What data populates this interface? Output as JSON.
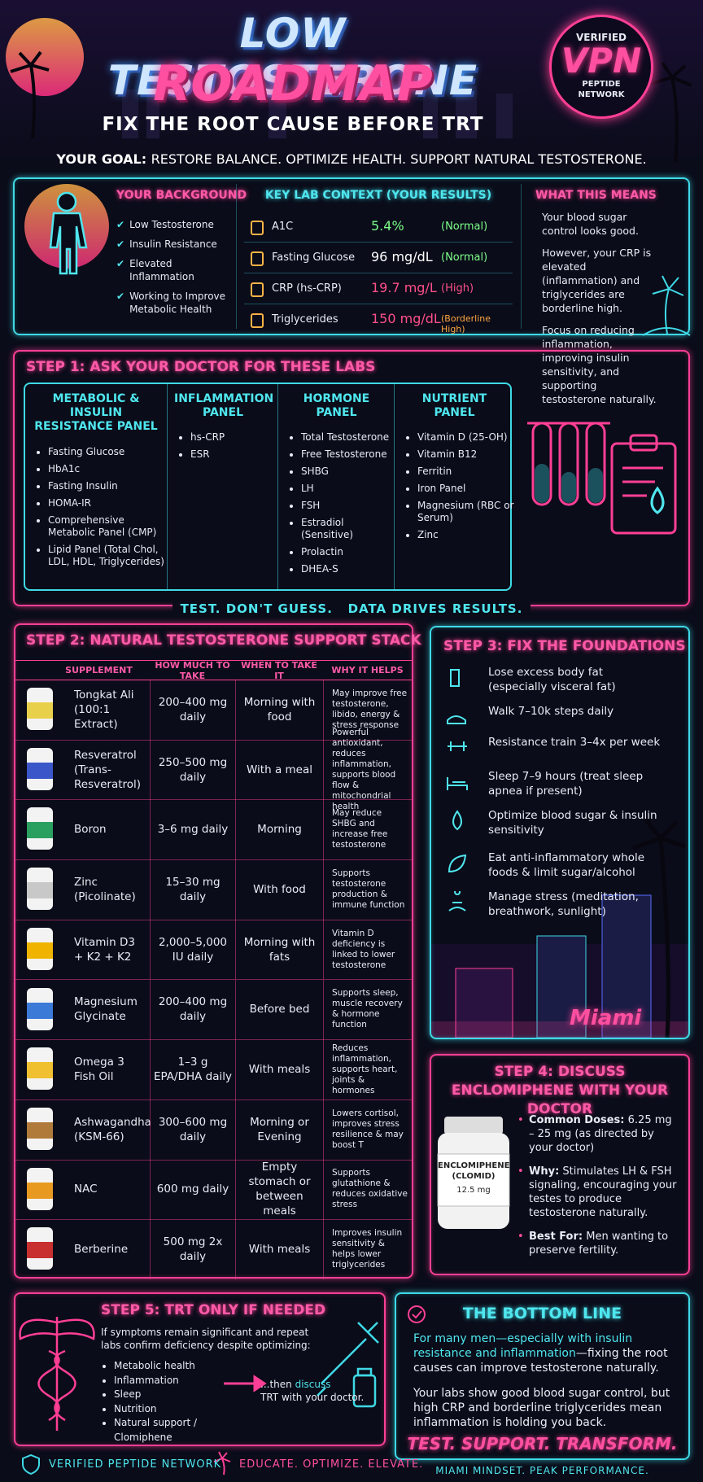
{
  "header": {
    "title_line1": "LOW TESTOSTERONE",
    "title_line2": "ROADMAP",
    "subtitle": "FIX THE ROOT CAUSE BEFORE TRT",
    "badge": {
      "top": "VERIFIED",
      "main": "VPN",
      "bottom": "PEPTIDE NETWORK"
    }
  },
  "goal": {
    "label": "YOUR GOAL:",
    "text": "RESTORE BALANCE. OPTIMIZE HEALTH. SUPPORT NATURAL TESTOSTERONE."
  },
  "background": {
    "title": "YOUR BACKGROUND",
    "items": [
      "Low Testosterone",
      "Insulin Resistance",
      "Elevated Inflammation",
      "Working to Improve Metabolic Health"
    ]
  },
  "labs": {
    "title": "KEY LAB CONTEXT (YOUR RESULTS)",
    "rows": [
      {
        "name": "A1C",
        "value": "5.4%",
        "status": "(Normal)"
      },
      {
        "name": "Fasting Glucose",
        "value": "96 mg/dL",
        "status": "(Normal)"
      },
      {
        "name": "CRP (hs-CRP)",
        "value": "19.7 mg/L",
        "status": "(High)"
      },
      {
        "name": "Triglycerides",
        "value": "150 mg/dL",
        "status": "(Borderline High)"
      }
    ]
  },
  "meaning": {
    "title": "WHAT THIS MEANS",
    "paragraphs": [
      "Your blood sugar control looks good.",
      "However, your CRP is elevated (inflammation) and triglycerides are borderline high.",
      "Focus on reducing inflammation, improving insulin sensitivity, and supporting testosterone naturally."
    ]
  },
  "step1": {
    "title": "STEP 1: ASK YOUR DOCTOR FOR THESE LABS",
    "panels": [
      {
        "title": "METABOLIC & INSULIN RESISTANCE PANEL",
        "items": [
          "Fasting Glucose",
          "HbA1c",
          "Fasting Insulin",
          "HOMA-IR",
          "Comprehensive Metabolic Panel (CMP)",
          "Lipid Panel (Total Chol, LDL, HDL, Triglycerides)"
        ]
      },
      {
        "title": "INFLAMMATION PANEL",
        "items": [
          "hs-CRP",
          "ESR"
        ]
      },
      {
        "title": "HORMONE PANEL",
        "items": [
          "Total Testosterone",
          "Free Testosterone",
          "SHBG",
          "LH",
          "FSH",
          "Estradiol (Sensitive)",
          "Prolactin",
          "DHEA-S"
        ]
      },
      {
        "title": "NUTRIENT PANEL",
        "items": [
          "Vitamin D (25-OH)",
          "Vitamin B12",
          "Ferritin",
          "Iron Panel",
          "Magnesium (RBC or Serum)",
          "Zinc"
        ]
      }
    ],
    "tagline": [
      "TEST. DON'T GUESS.",
      "DATA DRIVES RESULTS."
    ]
  },
  "step2": {
    "title": "STEP 2: NATURAL TESTOSTERONE SUPPORT STACK",
    "columns": [
      "SUPPLEMENT",
      "HOW MUCH TO TAKE",
      "WHEN TO TAKE IT",
      "WHY IT HELPS"
    ],
    "rows": [
      [
        "Tongkat Ali (100:1 Extract)",
        "200–400 mg daily",
        "Morning with food",
        "May improve free testosterone, libido, energy & stress response"
      ],
      [
        "Resveratrol (Trans-Resveratrol)",
        "250–500 mg daily",
        "With a meal",
        "Powerful antioxidant, reduces inflammation, supports blood flow & mitochondrial health"
      ],
      [
        "Boron",
        "3–6 mg daily",
        "Morning",
        "May reduce SHBG and increase free testosterone"
      ],
      [
        "Zinc (Picolinate)",
        "15–30 mg daily",
        "With food",
        "Supports testosterone production & immune function"
      ],
      [
        "Vitamin D3 + K2 + K2",
        "2,000–5,000 IU daily",
        "Morning with fats",
        "Vitamin D deficiency is linked to lower testosterone"
      ],
      [
        "Magnesium Glycinate",
        "200–400 mg daily",
        "Before bed",
        "Supports sleep, muscle recovery & hormone function"
      ],
      [
        "Omega 3 Fish Oil",
        "1–3 g EPA/DHA daily",
        "With meals",
        "Reduces inflammation, supports heart, joints & hormones"
      ],
      [
        "Ashwagandha (KSM-66)",
        "300–600 mg daily",
        "Morning or Evening",
        "Lowers cortisol, improves stress resilience & may boost T"
      ],
      [
        "NAC",
        "600 mg daily",
        "Empty stomach or between meals",
        "Supports glutathione & reduces oxidative stress"
      ],
      [
        "Berberine",
        "500 mg 2x daily",
        "With meals",
        "Improves insulin sensitivity & helps lower triglycerides"
      ]
    ]
  },
  "step3": {
    "title": "STEP 3: FIX THE FOUNDATIONS",
    "items": [
      "Lose excess body fat (especially visceral fat)",
      "Walk 7–10k steps daily",
      "Resistance train 3–4x per week",
      "Sleep 7–9 hours (treat sleep apnea if present)",
      "Optimize blood sugar & insulin sensitivity",
      "Eat anti-inflammatory whole foods & limit sugar/alcohol",
      "Manage stress (meditation, breathwork, sunlight)"
    ],
    "city_sign": "Miami"
  },
  "step4": {
    "title": "STEP 4: DISCUSS ENCLOMIPHENE WITH YOUR DOCTOR",
    "bottle": {
      "name": "ENCLOMIPHENE (CLOMID)",
      "dose": "12.5 mg"
    },
    "items": [
      {
        "label": "Common Doses:",
        "text": "6.25 mg – 25 mg (as directed by your doctor)"
      },
      {
        "label": "Why:",
        "text": "Stimulates LH & FSH signaling, encouraging your testes to produce testosterone naturally."
      },
      {
        "label": "Best For:",
        "text": "Men wanting to preserve fertility."
      }
    ]
  },
  "step5": {
    "title": "STEP 5: TRT ONLY IF NEEDED",
    "intro": "If symptoms remain significant and repeat labs confirm deficiency despite optimizing:",
    "items": [
      "Metabolic health",
      "Inflammation",
      "Sleep",
      "Nutrition",
      "Natural support / Clomiphene"
    ],
    "then_prefix": "...then",
    "then_highlight": "discuss",
    "then_suffix": "TRT with your doctor."
  },
  "bottom_line": {
    "title": "THE BOTTOM LINE",
    "p1_highlight": "For many men—especially with insulin resistance and inflammation",
    "p1_rest": "—fixing the root causes can improve testosterone naturally.",
    "p2": "Your labs show good blood sugar control, but high CRP and borderline triglycerides mean inflammation is holding you back.",
    "slogan": "TEST. SUPPORT. TRANSFORM.",
    "tag": "MIAMI MINDSET. PEAK PERFORMANCE."
  },
  "footer": {
    "left": "VERIFIED PEPTIDE NETWORK",
    "right": "EDUCATE. OPTIMIZE. ELEVATE."
  }
}
